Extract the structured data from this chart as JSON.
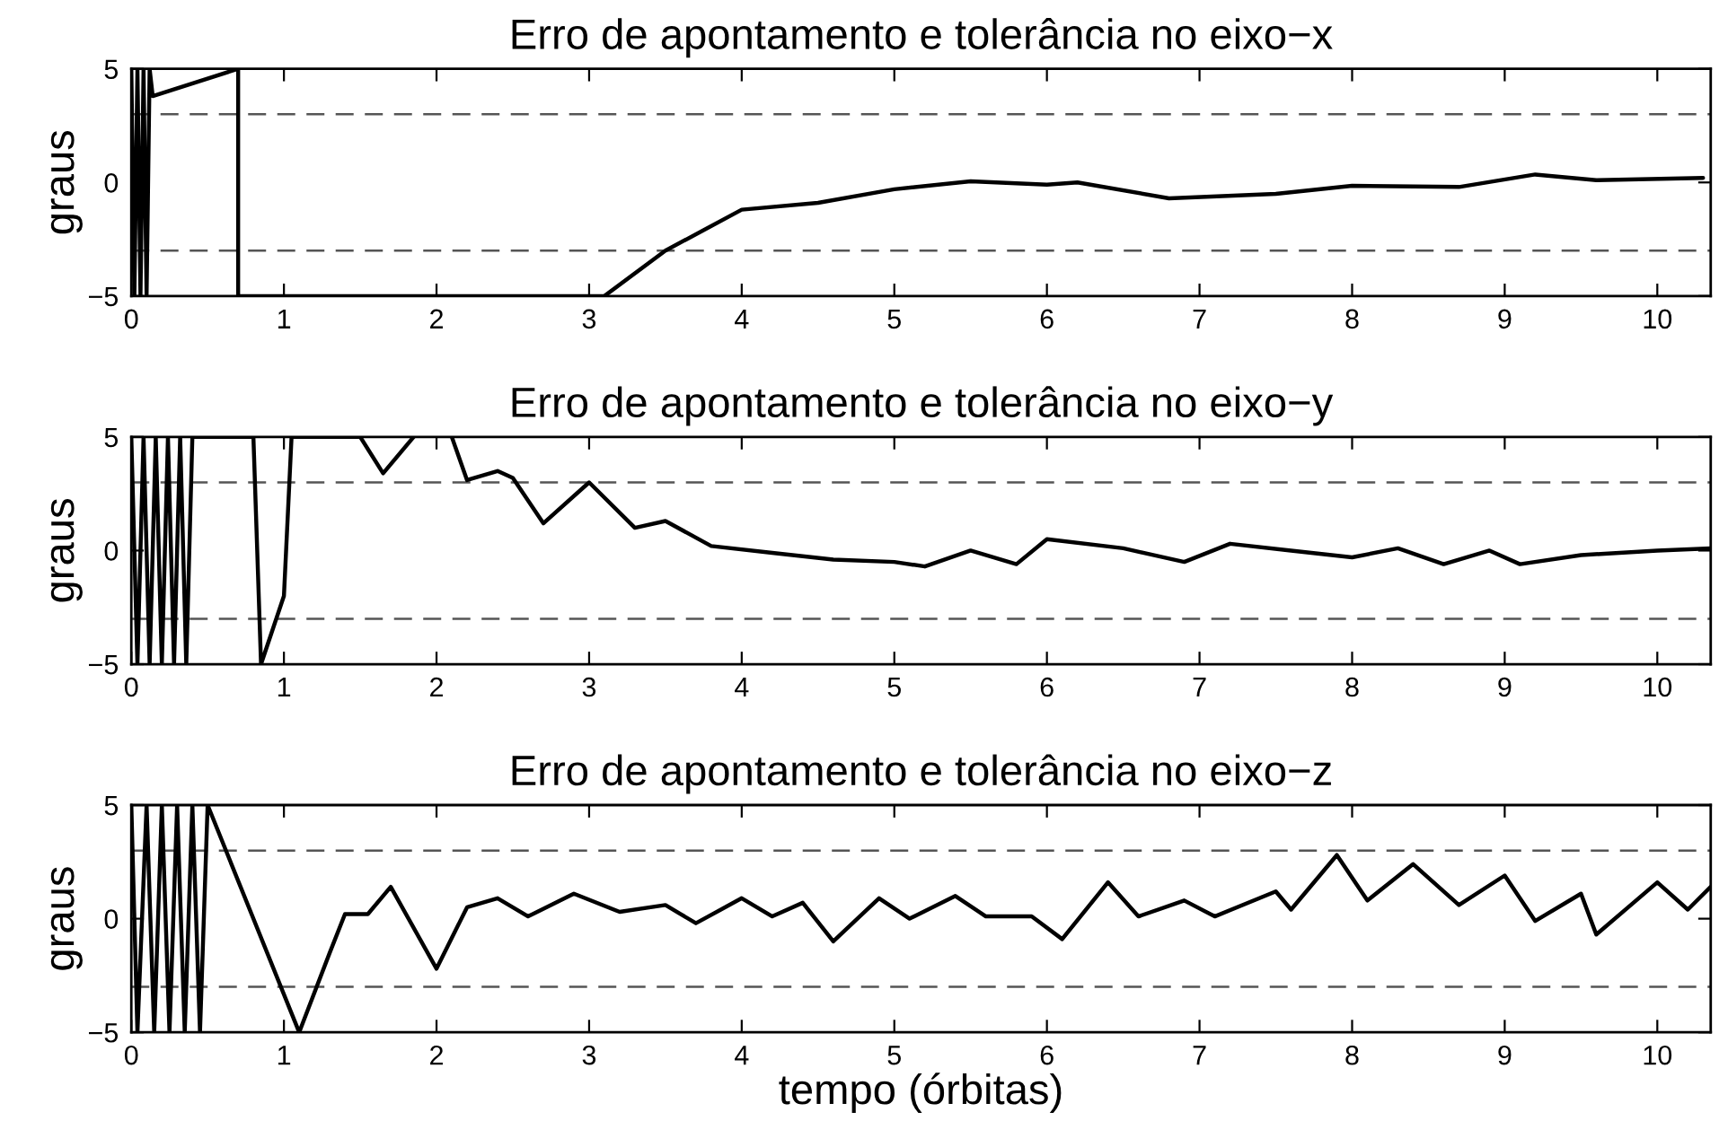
{
  "chart_data": [
    {
      "type": "line",
      "title": "Erro de apontamento e tolerância no eixo−x",
      "ylabel": "graus",
      "xlim": [
        0,
        10.35
      ],
      "ylim": [
        -5,
        5
      ],
      "xticks": [
        0,
        1,
        2,
        3,
        4,
        5,
        6,
        7,
        8,
        9,
        10
      ],
      "yticks": [
        -5,
        0,
        5
      ],
      "grid": false,
      "line_style": "solid",
      "ref_lines": [
        {
          "axis": "y",
          "value": 3,
          "color": "#555555",
          "line_style": "dashed"
        },
        {
          "axis": "y",
          "value": -3,
          "color": "#555555",
          "line_style": "dashed"
        }
      ],
      "series": [
        {
          "color": "#000000",
          "x": [
            0.0,
            0.02,
            0.04,
            0.06,
            0.08,
            0.1,
            0.12,
            0.14,
            0.7,
            0.7,
            3.1,
            3.5,
            4.0,
            4.5,
            5.0,
            5.5,
            6.0,
            6.2,
            6.8,
            7.5,
            8.0,
            8.7,
            9.2,
            9.6,
            10.3
          ],
          "values": [
            5,
            -5,
            5,
            -5,
            5,
            -5,
            5,
            3.8,
            5,
            -5,
            -5,
            -3,
            -1.2,
            -0.9,
            -0.3,
            0.05,
            -0.1,
            0.0,
            -0.7,
            -0.5,
            -0.15,
            -0.2,
            0.35,
            0.1,
            0.2
          ]
        }
      ]
    },
    {
      "type": "line",
      "title": "Erro de apontamento e tolerância no eixo−y",
      "ylabel": "graus",
      "xlim": [
        0,
        10.35
      ],
      "ylim": [
        -5,
        5
      ],
      "xticks": [
        0,
        1,
        2,
        3,
        4,
        5,
        6,
        7,
        8,
        9,
        10
      ],
      "yticks": [
        -5,
        0,
        5
      ],
      "grid": false,
      "line_style": "solid",
      "ref_lines": [
        {
          "axis": "y",
          "value": 3,
          "color": "#555555",
          "line_style": "dashed"
        },
        {
          "axis": "y",
          "value": -3,
          "color": "#555555",
          "line_style": "dashed"
        }
      ],
      "series": [
        {
          "color": "#000000",
          "x": [
            0.0,
            0.04,
            0.08,
            0.12,
            0.16,
            0.2,
            0.24,
            0.28,
            0.32,
            0.36,
            0.4,
            0.8,
            0.85,
            1.0,
            1.05,
            1.5,
            1.65,
            1.85,
            1.9,
            2.1,
            2.2,
            2.4,
            2.5,
            2.7,
            3.0,
            3.3,
            3.5,
            3.8,
            4.2,
            4.6,
            5.0,
            5.2,
            5.5,
            5.8,
            6.0,
            6.5,
            6.9,
            7.2,
            7.6,
            8.0,
            8.3,
            8.6,
            8.9,
            9.1,
            9.5,
            10.0,
            10.35
          ],
          "values": [
            5,
            -5,
            5,
            -5,
            5,
            -5,
            5,
            -5,
            5,
            -5,
            5,
            5,
            -5,
            -2,
            5,
            5,
            3.4,
            5,
            null,
            5,
            3.1,
            3.5,
            3.2,
            1.2,
            3.0,
            1.0,
            1.3,
            0.2,
            -0.1,
            -0.4,
            -0.5,
            -0.7,
            0.0,
            -0.6,
            0.5,
            0.1,
            -0.5,
            0.3,
            0.0,
            -0.3,
            0.1,
            -0.6,
            0.0,
            -0.6,
            -0.2,
            0.0,
            0.1
          ]
        }
      ]
    },
    {
      "type": "line",
      "title": "Erro de apontamento e tolerância no eixo−z",
      "xlabel": "tempo (órbitas)",
      "ylabel": "graus",
      "xlim": [
        0,
        10.35
      ],
      "ylim": [
        -5,
        5
      ],
      "xticks": [
        0,
        1,
        2,
        3,
        4,
        5,
        6,
        7,
        8,
        9,
        10
      ],
      "yticks": [
        -5,
        0,
        5
      ],
      "grid": false,
      "line_style": "solid",
      "ref_lines": [
        {
          "axis": "y",
          "value": 3,
          "color": "#555555",
          "line_style": "dashed"
        },
        {
          "axis": "y",
          "value": -3,
          "color": "#555555",
          "line_style": "dashed"
        }
      ],
      "series": [
        {
          "color": "#000000",
          "x": [
            0.0,
            0.04,
            0.1,
            0.15,
            0.2,
            0.25,
            0.3,
            0.35,
            0.4,
            0.45,
            0.5,
            1.1,
            1.3,
            1.4,
            1.55,
            1.7,
            2.0,
            2.2,
            2.4,
            2.6,
            2.9,
            3.2,
            3.5,
            3.7,
            4.0,
            4.2,
            4.4,
            4.6,
            4.9,
            5.1,
            5.4,
            5.6,
            5.9,
            6.1,
            6.4,
            6.6,
            6.9,
            7.1,
            7.5,
            7.6,
            7.9,
            8.1,
            8.4,
            8.7,
            9.0,
            9.2,
            9.5,
            9.6,
            10.0,
            10.2,
            10.35
          ],
          "values": [
            5,
            -5,
            5,
            -5,
            5,
            -5,
            5,
            -5,
            5,
            -5,
            5,
            -5,
            -1.5,
            0.2,
            0.2,
            1.4,
            -2.2,
            0.5,
            0.9,
            0.1,
            1.1,
            0.3,
            0.6,
            -0.2,
            0.9,
            0.1,
            0.7,
            -1.0,
            0.9,
            0.0,
            1.0,
            0.1,
            0.1,
            -0.9,
            1.6,
            0.1,
            0.8,
            0.1,
            1.2,
            0.4,
            2.8,
            0.8,
            2.4,
            0.6,
            1.9,
            -0.1,
            1.1,
            -0.7,
            1.6,
            0.4,
            1.4
          ]
        }
      ]
    }
  ]
}
